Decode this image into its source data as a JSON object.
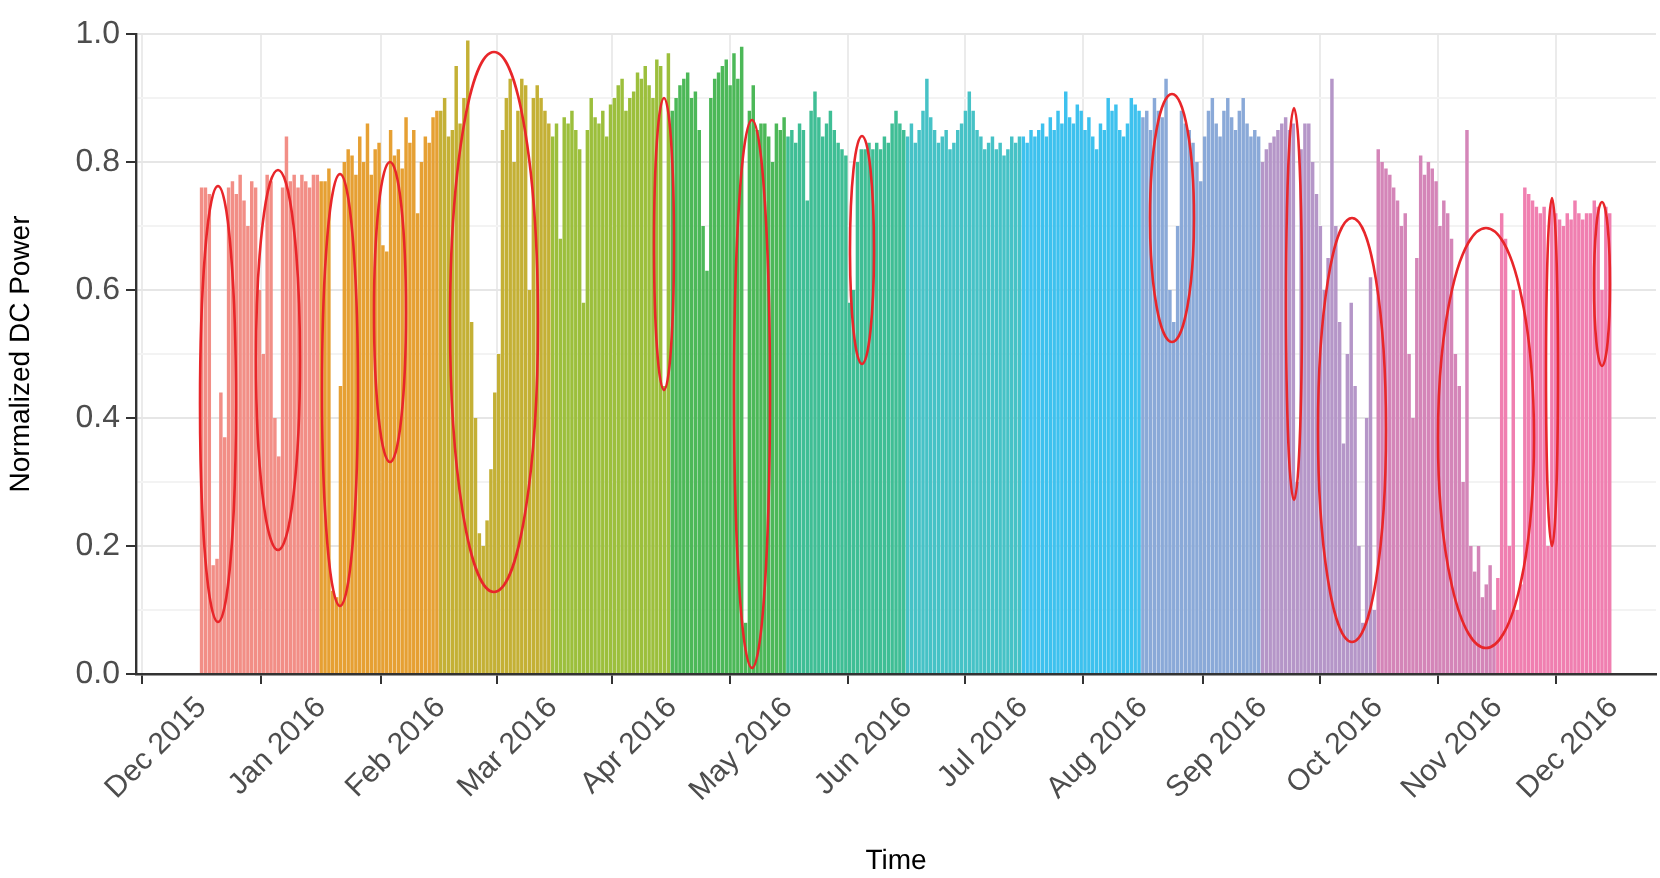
{
  "chart_data": {
    "type": "bar",
    "xlabel": "Time",
    "ylabel": "Normalized DC Power",
    "grid": true,
    "legend": false,
    "xlim": [
      "2015-11-14",
      "2016-12-12"
    ],
    "xticks": [
      {
        "value": "2015-12",
        "label": "Dec 2015"
      },
      {
        "value": "2016-01",
        "label": "Jan 2016"
      },
      {
        "value": "2016-02",
        "label": "Feb 2016"
      },
      {
        "value": "2016-03",
        "label": "Mar 2016"
      },
      {
        "value": "2016-04",
        "label": "Apr 2016"
      },
      {
        "value": "2016-05",
        "label": "May 2016"
      },
      {
        "value": "2016-06",
        "label": "Jun 2016"
      },
      {
        "value": "2016-07",
        "label": "Jul 2016"
      },
      {
        "value": "2016-08",
        "label": "Aug 2016"
      },
      {
        "value": "2016-09",
        "label": "Sep 2016"
      },
      {
        "value": "2016-10",
        "label": "Oct 2016"
      },
      {
        "value": "2016-11",
        "label": "Nov 2016"
      },
      {
        "value": "2016-12",
        "label": "Dec 2016"
      }
    ],
    "ylim": [
      0,
      1
    ],
    "yticks": [
      {
        "value": 0,
        "label": "0.0"
      },
      {
        "value": 0.1,
        "label": null
      },
      {
        "value": 0.2,
        "label": "0.2"
      },
      {
        "value": 0.3,
        "label": null
      },
      {
        "value": 0.4,
        "label": "0.4"
      },
      {
        "value": 0.5,
        "label": null
      },
      {
        "value": 0.6,
        "label": "0.6"
      },
      {
        "value": 0.7,
        "label": null
      },
      {
        "value": 0.8,
        "label": "0.8"
      },
      {
        "value": 0.9,
        "label": null
      },
      {
        "value": 1,
        "label": "1.0"
      }
    ],
    "series": [
      {
        "color": "#f28e86",
        "x": [
          "2015-12-01",
          "2015-12-02",
          "2015-12-03",
          "2015-12-04",
          "2015-12-05",
          "2015-12-06",
          "2015-12-07",
          "2015-12-08",
          "2015-12-09",
          "2015-12-10",
          "2015-12-11",
          "2015-12-12",
          "2015-12-13",
          "2015-12-14",
          "2015-12-15",
          "2015-12-16",
          "2015-12-17",
          "2015-12-18",
          "2015-12-19",
          "2015-12-20",
          "2015-12-21",
          "2015-12-22",
          "2015-12-23",
          "2015-12-24",
          "2015-12-25",
          "2015-12-26",
          "2015-12-27",
          "2015-12-28",
          "2015-12-29",
          "2015-12-30",
          "2015-12-31"
        ],
        "values": [
          0.76,
          0.76,
          0.75,
          0.17,
          0.18,
          0.44,
          0.37,
          0.76,
          0.77,
          0.75,
          0.78,
          0.74,
          0.7,
          0.77,
          0.76,
          0.6,
          0.5,
          0.78,
          0.77,
          0.4,
          0.34,
          0.76,
          0.84,
          0.77,
          0.78,
          0.76,
          0.78,
          0.77,
          0.76,
          0.78,
          0.78
        ]
      },
      {
        "color": "#e6a033",
        "x": [
          "2016-01-01",
          "2016-01-02",
          "2016-01-03",
          "2016-01-04",
          "2016-01-05",
          "2016-01-06",
          "2016-01-07",
          "2016-01-08",
          "2016-01-09",
          "2016-01-10",
          "2016-01-11",
          "2016-01-12",
          "2016-01-13",
          "2016-01-14",
          "2016-01-15",
          "2016-01-16",
          "2016-01-17",
          "2016-01-18",
          "2016-01-19",
          "2016-01-20",
          "2016-01-21",
          "2016-01-22",
          "2016-01-23",
          "2016-01-24",
          "2016-01-25",
          "2016-01-26",
          "2016-01-27",
          "2016-01-28",
          "2016-01-29",
          "2016-01-30",
          "2016-01-31"
        ],
        "values": [
          0.77,
          0.77,
          0.79,
          0.13,
          0.12,
          0.45,
          0.8,
          0.82,
          0.81,
          0.78,
          0.84,
          0.8,
          0.86,
          0.78,
          0.82,
          0.83,
          0.67,
          0.66,
          0.85,
          0.81,
          0.82,
          0.79,
          0.87,
          0.83,
          0.85,
          0.72,
          0.8,
          0.84,
          0.83,
          0.87,
          0.88
        ]
      },
      {
        "color": "#c4b035",
        "x": [
          "2016-02-01",
          "2016-02-02",
          "2016-02-03",
          "2016-02-04",
          "2016-02-05",
          "2016-02-06",
          "2016-02-07",
          "2016-02-08",
          "2016-02-09",
          "2016-02-10",
          "2016-02-11",
          "2016-02-12",
          "2016-02-13",
          "2016-02-14",
          "2016-02-15",
          "2016-02-16",
          "2016-02-17",
          "2016-02-18",
          "2016-02-19",
          "2016-02-20",
          "2016-02-21",
          "2016-02-22",
          "2016-02-23",
          "2016-02-24",
          "2016-02-25",
          "2016-02-26",
          "2016-02-27",
          "2016-02-28",
          "2016-02-29"
        ],
        "values": [
          0.88,
          0.9,
          0.84,
          0.85,
          0.95,
          0.86,
          0.9,
          0.99,
          0.55,
          0.4,
          0.22,
          0.2,
          0.24,
          0.32,
          0.44,
          0.5,
          0.85,
          0.9,
          0.93,
          0.8,
          0.88,
          0.93,
          0.92,
          0.6,
          0.9,
          0.92,
          0.9,
          0.88,
          0.86
        ]
      },
      {
        "color": "#9cbf3c",
        "x": [
          "2016-03-01",
          "2016-03-02",
          "2016-03-03",
          "2016-03-04",
          "2016-03-05",
          "2016-03-06",
          "2016-03-07",
          "2016-03-08",
          "2016-03-09",
          "2016-03-10",
          "2016-03-11",
          "2016-03-12",
          "2016-03-13",
          "2016-03-14",
          "2016-03-15",
          "2016-03-16",
          "2016-03-17",
          "2016-03-18",
          "2016-03-19",
          "2016-03-20",
          "2016-03-21",
          "2016-03-22",
          "2016-03-23",
          "2016-03-24",
          "2016-03-25",
          "2016-03-26",
          "2016-03-27",
          "2016-03-28",
          "2016-03-29",
          "2016-03-30",
          "2016-03-31"
        ],
        "values": [
          0.84,
          0.86,
          0.68,
          0.87,
          0.86,
          0.88,
          0.85,
          0.82,
          0.58,
          0.85,
          0.9,
          0.87,
          0.86,
          0.88,
          0.84,
          0.89,
          0.9,
          0.92,
          0.93,
          0.88,
          0.9,
          0.91,
          0.94,
          0.93,
          0.95,
          0.92,
          0.9,
          0.96,
          0.95,
          0.45,
          0.97
        ]
      },
      {
        "color": "#4cb858",
        "x": [
          "2016-04-01",
          "2016-04-02",
          "2016-04-03",
          "2016-04-04",
          "2016-04-05",
          "2016-04-06",
          "2016-04-07",
          "2016-04-08",
          "2016-04-09",
          "2016-04-10",
          "2016-04-11",
          "2016-04-12",
          "2016-04-13",
          "2016-04-14",
          "2016-04-15",
          "2016-04-16",
          "2016-04-17",
          "2016-04-18",
          "2016-04-19",
          "2016-04-20",
          "2016-04-21",
          "2016-04-22",
          "2016-04-23",
          "2016-04-24",
          "2016-04-25",
          "2016-04-26",
          "2016-04-27",
          "2016-04-28",
          "2016-04-29",
          "2016-04-30"
        ],
        "values": [
          0.88,
          0.9,
          0.92,
          0.93,
          0.94,
          0.9,
          0.91,
          0.85,
          0.7,
          0.63,
          0.9,
          0.93,
          0.94,
          0.95,
          0.96,
          0.92,
          0.97,
          0.93,
          0.98,
          0.08,
          0.88,
          0.92,
          0.85,
          0.86,
          0.86,
          0.84,
          0.8,
          0.86,
          0.85,
          0.87
        ]
      },
      {
        "color": "#3fbe95",
        "x": [
          "2016-05-01",
          "2016-05-02",
          "2016-05-03",
          "2016-05-04",
          "2016-05-05",
          "2016-05-06",
          "2016-05-07",
          "2016-05-08",
          "2016-05-09",
          "2016-05-10",
          "2016-05-11",
          "2016-05-12",
          "2016-05-13",
          "2016-05-14",
          "2016-05-15",
          "2016-05-16",
          "2016-05-17",
          "2016-05-18",
          "2016-05-19",
          "2016-05-20",
          "2016-05-21",
          "2016-05-22",
          "2016-05-23",
          "2016-05-24",
          "2016-05-25",
          "2016-05-26",
          "2016-05-27",
          "2016-05-28",
          "2016-05-29",
          "2016-05-30",
          "2016-05-31"
        ],
        "values": [
          0.84,
          0.85,
          0.83,
          0.86,
          0.85,
          0.74,
          0.88,
          0.91,
          0.87,
          0.84,
          0.86,
          0.88,
          0.85,
          0.83,
          0.82,
          0.81,
          0.58,
          0.6,
          0.8,
          0.82,
          0.82,
          0.83,
          0.82,
          0.83,
          0.82,
          0.84,
          0.83,
          0.86,
          0.88,
          0.86,
          0.85
        ]
      },
      {
        "color": "#46c2c6",
        "x": [
          "2016-06-01",
          "2016-06-02",
          "2016-06-03",
          "2016-06-04",
          "2016-06-05",
          "2016-06-06",
          "2016-06-07",
          "2016-06-08",
          "2016-06-09",
          "2016-06-10",
          "2016-06-11",
          "2016-06-12",
          "2016-06-13",
          "2016-06-14",
          "2016-06-15",
          "2016-06-16",
          "2016-06-17",
          "2016-06-18",
          "2016-06-19",
          "2016-06-20",
          "2016-06-21",
          "2016-06-22",
          "2016-06-23",
          "2016-06-24",
          "2016-06-25",
          "2016-06-26",
          "2016-06-27",
          "2016-06-28",
          "2016-06-29",
          "2016-06-30"
        ],
        "values": [
          0.84,
          0.86,
          0.83,
          0.85,
          0.88,
          0.93,
          0.87,
          0.85,
          0.83,
          0.84,
          0.85,
          0.82,
          0.83,
          0.85,
          0.86,
          0.88,
          0.91,
          0.88,
          0.85,
          0.84,
          0.82,
          0.83,
          0.84,
          0.82,
          0.83,
          0.81,
          0.82,
          0.84,
          0.83,
          0.84
        ]
      },
      {
        "color": "#3dc1ee",
        "x": [
          "2016-07-01",
          "2016-07-02",
          "2016-07-03",
          "2016-07-04",
          "2016-07-05",
          "2016-07-06",
          "2016-07-07",
          "2016-07-08",
          "2016-07-09",
          "2016-07-10",
          "2016-07-11",
          "2016-07-12",
          "2016-07-13",
          "2016-07-14",
          "2016-07-15",
          "2016-07-16",
          "2016-07-17",
          "2016-07-18",
          "2016-07-19",
          "2016-07-20",
          "2016-07-21",
          "2016-07-22",
          "2016-07-23",
          "2016-07-24",
          "2016-07-25",
          "2016-07-26",
          "2016-07-27",
          "2016-07-28",
          "2016-07-29",
          "2016-07-30",
          "2016-07-31"
        ],
        "values": [
          0.84,
          0.83,
          0.85,
          0.84,
          0.85,
          0.86,
          0.84,
          0.87,
          0.85,
          0.88,
          0.86,
          0.91,
          0.87,
          0.86,
          0.89,
          0.88,
          0.85,
          0.87,
          0.84,
          0.82,
          0.86,
          0.85,
          0.9,
          0.88,
          0.89,
          0.85,
          0.84,
          0.86,
          0.9,
          0.89,
          0.88
        ]
      },
      {
        "color": "#8aa9d8",
        "x": [
          "2016-08-01",
          "2016-08-02",
          "2016-08-03",
          "2016-08-04",
          "2016-08-05",
          "2016-08-06",
          "2016-08-07",
          "2016-08-08",
          "2016-08-09",
          "2016-08-10",
          "2016-08-11",
          "2016-08-12",
          "2016-08-13",
          "2016-08-14",
          "2016-08-15",
          "2016-08-16",
          "2016-08-17",
          "2016-08-18",
          "2016-08-19",
          "2016-08-20",
          "2016-08-21",
          "2016-08-22",
          "2016-08-23",
          "2016-08-24",
          "2016-08-25",
          "2016-08-26",
          "2016-08-27",
          "2016-08-28",
          "2016-08-29",
          "2016-08-30",
          "2016-08-31"
        ],
        "values": [
          0.87,
          0.88,
          0.85,
          0.9,
          0.88,
          0.87,
          0.93,
          0.6,
          0.55,
          0.7,
          0.88,
          0.86,
          0.85,
          0.83,
          0.8,
          0.77,
          0.84,
          0.88,
          0.9,
          0.86,
          0.84,
          0.88,
          0.9,
          0.87,
          0.85,
          0.88,
          0.9,
          0.86,
          0.84,
          0.85,
          0.84
        ]
      },
      {
        "color": "#b596c8",
        "x": [
          "2016-09-01",
          "2016-09-02",
          "2016-09-03",
          "2016-09-04",
          "2016-09-05",
          "2016-09-06",
          "2016-09-07",
          "2016-09-08",
          "2016-09-09",
          "2016-09-10",
          "2016-09-11",
          "2016-09-12",
          "2016-09-13",
          "2016-09-14",
          "2016-09-15",
          "2016-09-16",
          "2016-09-17",
          "2016-09-18",
          "2016-09-19",
          "2016-09-20",
          "2016-09-21",
          "2016-09-22",
          "2016-09-23",
          "2016-09-24",
          "2016-09-25",
          "2016-09-26",
          "2016-09-27",
          "2016-09-28",
          "2016-09-29",
          "2016-09-30"
        ],
        "values": [
          0.8,
          0.82,
          0.83,
          0.84,
          0.85,
          0.86,
          0.87,
          0.85,
          0.86,
          0.3,
          0.82,
          0.86,
          0.86,
          0.8,
          0.75,
          0.7,
          0.6,
          0.65,
          0.93,
          0.7,
          0.55,
          0.36,
          0.5,
          0.58,
          0.45,
          0.2,
          0.08,
          0.4,
          0.62,
          0.1
        ]
      },
      {
        "color": "#d485b8",
        "x": [
          "2016-10-01",
          "2016-10-02",
          "2016-10-03",
          "2016-10-04",
          "2016-10-05",
          "2016-10-06",
          "2016-10-07",
          "2016-10-08",
          "2016-10-09",
          "2016-10-10",
          "2016-10-11",
          "2016-10-12",
          "2016-10-13",
          "2016-10-14",
          "2016-10-15",
          "2016-10-16",
          "2016-10-17",
          "2016-10-18",
          "2016-10-19",
          "2016-10-20",
          "2016-10-21",
          "2016-10-22",
          "2016-10-23",
          "2016-10-24",
          "2016-10-25",
          "2016-10-26",
          "2016-10-27",
          "2016-10-28",
          "2016-10-29",
          "2016-10-30",
          "2016-10-31"
        ],
        "values": [
          0.82,
          0.8,
          0.79,
          0.78,
          0.76,
          0.74,
          0.7,
          0.72,
          0.5,
          0.4,
          0.65,
          0.81,
          0.78,
          0.8,
          0.79,
          0.77,
          0.7,
          0.74,
          0.72,
          0.68,
          0.5,
          0.45,
          0.3,
          0.85,
          0.2,
          0.16,
          0.2,
          0.12,
          0.14,
          0.17,
          0.1
        ]
      },
      {
        "color": "#f07fb0",
        "x": [
          "2016-11-01",
          "2016-11-02",
          "2016-11-03",
          "2016-11-04",
          "2016-11-05",
          "2016-11-06",
          "2016-11-07",
          "2016-11-08",
          "2016-11-09",
          "2016-11-10",
          "2016-11-11",
          "2016-11-12",
          "2016-11-13",
          "2016-11-14",
          "2016-11-15",
          "2016-11-16",
          "2016-11-17",
          "2016-11-18",
          "2016-11-19",
          "2016-11-20",
          "2016-11-21",
          "2016-11-22",
          "2016-11-23",
          "2016-11-24",
          "2016-11-25",
          "2016-11-26",
          "2016-11-27",
          "2016-11-28",
          "2016-11-29",
          "2016-11-30"
        ],
        "values": [
          0.15,
          0.72,
          0.68,
          0.2,
          0.6,
          0.1,
          0.14,
          0.76,
          0.75,
          0.74,
          0.73,
          0.72,
          0.73,
          0.2,
          0.74,
          0.72,
          0.71,
          0.7,
          0.72,
          0.71,
          0.74,
          0.72,
          0.71,
          0.72,
          0.72,
          0.74,
          0.73,
          0.6,
          0.73,
          0.72
        ]
      }
    ]
  }
}
